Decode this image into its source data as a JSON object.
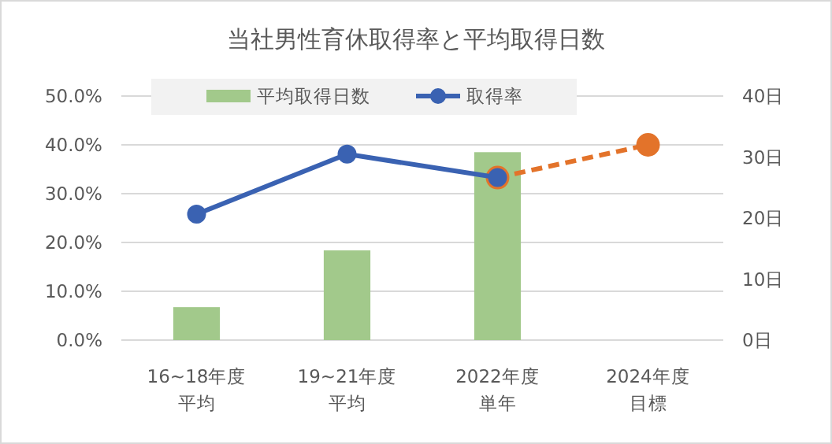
{
  "chart_data": {
    "type": "bar",
    "title": "当社男性育休取得率と平均取得日数",
    "categories": [
      "16~18年度平均",
      "19~21年度平均",
      "2022年度単年",
      "2024年度目標"
    ],
    "series": [
      {
        "name": "平均取得日数",
        "axis": "y2",
        "color": "#a2c98b",
        "values": [
          5.4,
          14.7,
          30.8,
          null
        ]
      },
      {
        "name": "取得率",
        "type": "line",
        "axis": "y",
        "color": "#3a62b2",
        "marker": "circle",
        "line_style": "solid",
        "values": [
          25.8,
          38.1,
          33.3,
          null
        ]
      },
      {
        "type": "line",
        "axis": "y",
        "color": "#e3732a",
        "marker": "circle",
        "line_style": "dashed",
        "values": [
          null,
          null,
          33.3,
          40
        ]
      }
    ],
    "ylim": [
      0,
      50
    ],
    "yticks": [
      {
        "value": 0,
        "label": "0.0%"
      },
      {
        "value": 10,
        "label": "10.0%"
      },
      {
        "value": 20,
        "label": "20.0%"
      },
      {
        "value": 30,
        "label": "30.0%"
      },
      {
        "value": 40,
        "label": "40.0%"
      },
      {
        "value": 50,
        "label": "50.0%"
      }
    ],
    "y2lim": [
      0,
      40
    ],
    "y2ticks": [
      {
        "value": 0,
        "label": "0日"
      },
      {
        "value": 10,
        "label": "10日"
      },
      {
        "value": 20,
        "label": "20日"
      },
      {
        "value": 30,
        "label": "30日"
      },
      {
        "value": 40,
        "label": "40日"
      }
    ],
    "grid": "y",
    "legend": "top"
  }
}
